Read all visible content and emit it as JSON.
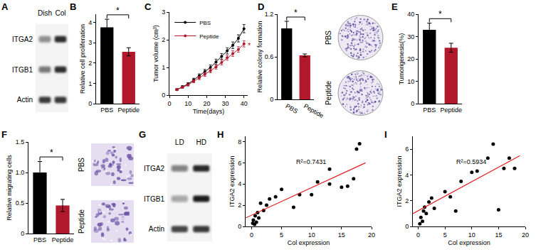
{
  "chart_data": [
    {
      "panel": "B",
      "type": "bar",
      "categories": [
        "PBS",
        "Peptide"
      ],
      "values": [
        3.75,
        2.55
      ],
      "errors": [
        0.4,
        0.2
      ],
      "colors": [
        "#000000",
        "#b2182b"
      ],
      "y_label": "Relative cell proliferation",
      "ylim": [
        0,
        4.4
      ],
      "yticks": [
        0,
        1,
        2,
        3,
        4
      ],
      "grid": false,
      "annotation": "*"
    },
    {
      "panel": "C",
      "type": "line",
      "x_label": "Time(days)",
      "y_label": "Tumor volume (cm³)",
      "x": [
        4,
        7,
        10,
        13,
        16,
        19,
        22,
        25,
        28,
        31,
        34,
        37,
        40
      ],
      "series": [
        {
          "name": "PBS",
          "color": "#000000",
          "values": [
            0.2,
            0.3,
            0.4,
            0.55,
            0.7,
            0.85,
            1.0,
            1.2,
            1.4,
            1.6,
            1.8,
            2.05,
            2.4
          ],
          "errors": [
            0.03,
            0.04,
            0.05,
            0.06,
            0.07,
            0.08,
            0.09,
            0.1,
            0.1,
            0.11,
            0.12,
            0.13,
            0.15
          ]
        },
        {
          "name": "Peptide",
          "color": "#b2182b",
          "values": [
            0.2,
            0.28,
            0.37,
            0.5,
            0.62,
            0.75,
            0.88,
            1.02,
            1.18,
            1.35,
            1.5,
            1.65,
            1.85
          ],
          "errors": [
            0.03,
            0.03,
            0.04,
            0.05,
            0.06,
            0.07,
            0.07,
            0.08,
            0.09,
            0.09,
            0.1,
            0.1,
            0.11
          ]
        }
      ],
      "xlim": [
        0,
        42
      ],
      "xticks": [
        0,
        10,
        20,
        30,
        40
      ],
      "ylim": [
        0,
        3
      ],
      "yticks": [
        0,
        1,
        2,
        3
      ],
      "legend": "top-left",
      "marker": "circle",
      "grid": false,
      "annotation": "*"
    },
    {
      "panel": "D",
      "type": "bar",
      "categories": [
        "PBS",
        "Peptide"
      ],
      "values": [
        1.0,
        0.62
      ],
      "errors": [
        0.1,
        0.02
      ],
      "colors": [
        "#000000",
        "#b2182b"
      ],
      "y_label": "Relative colony formation",
      "ylim": [
        0,
        1.2
      ],
      "yticks": [
        0,
        0.6,
        1.2
      ],
      "grid": false,
      "annotation": "*"
    },
    {
      "panel": "E",
      "type": "bar",
      "categories": [
        "PBS",
        "Peptide"
      ],
      "values": [
        33,
        25
      ],
      "errors": [
        3,
        2
      ],
      "colors": [
        "#000000",
        "#b2182b"
      ],
      "y_label": "Tumorigenesis(%)",
      "ylim": [
        0,
        40
      ],
      "yticks": [
        0,
        10,
        20,
        30,
        40
      ],
      "grid": false,
      "annotation": "*"
    },
    {
      "panel": "F",
      "type": "bar",
      "categories": [
        "PBS",
        "Peptide"
      ],
      "values": [
        1.0,
        0.46
      ],
      "errors": [
        0.18,
        0.1
      ],
      "colors": [
        "#000000",
        "#b2182b"
      ],
      "y_label": "Relative migrating cells",
      "ylim": [
        0,
        1.5
      ],
      "yticks": [
        0,
        0.5,
        {
          "value": 1,
          "label": "1.0"
        },
        1.5
      ],
      "grid": false,
      "annotation": "*"
    },
    {
      "panel": "H",
      "type": "scatter",
      "x_label": "Col expression",
      "y_label": "ITGA2 expression",
      "x": [
        0.2,
        0.3,
        0.5,
        0.6,
        0.8,
        1,
        1.2,
        1.5,
        2,
        2.5,
        3,
        4,
        5,
        7,
        8,
        10,
        11,
        13,
        13,
        15,
        16,
        17,
        17.5,
        18
      ],
      "values": [
        0.3,
        0.6,
        0.2,
        1.0,
        0.4,
        1.3,
        0.8,
        2.2,
        1.5,
        2.0,
        2.6,
        2.8,
        3.5,
        1.8,
        3.0,
        3.0,
        4.2,
        4.0,
        5.4,
        3.7,
        3.8,
        4.5,
        7.3,
        7.8
      ],
      "color": "#000000",
      "marker": "circle",
      "trendline": {
        "x": [
          -1,
          19
        ],
        "values": [
          0.8,
          6.0
        ],
        "color": "#e41a1c"
      },
      "xlim": [
        -1,
        20
      ],
      "xticks": [
        0,
        5,
        10,
        15,
        20
      ],
      "ylim": [
        0,
        8.5
      ],
      "yticks": [
        0,
        2,
        4,
        6,
        8
      ],
      "grid": false,
      "annotation": "R²=0.7431"
    },
    {
      "panel": "I",
      "type": "scatter",
      "x_label": "Col expression",
      "y_label": "ITGA2 expression",
      "x": [
        0.3,
        0.5,
        0.8,
        1,
        1.2,
        1.5,
        2,
        2.5,
        3,
        5,
        6,
        7,
        8,
        10,
        11,
        13,
        14,
        15,
        16,
        17,
        18
      ],
      "values": [
        0.2,
        0.7,
        0.4,
        1.2,
        1.5,
        1.0,
        1.9,
        2.2,
        1.4,
        2.7,
        2.3,
        1.2,
        3.5,
        4.2,
        4.3,
        5.3,
        6.4,
        1.3,
        4.5,
        5.3,
        4.5
      ],
      "color": "#000000",
      "marker": "circle",
      "trendline": {
        "x": [
          -1,
          19
        ],
        "values": [
          1.0,
          5.5
        ],
        "color": "#e41a1c"
      },
      "xlim": [
        -1,
        20
      ],
      "xticks": [
        0,
        5,
        10,
        15,
        20
      ],
      "ylim": [
        0,
        7
      ],
      "yticks": [
        0,
        2,
        4,
        6
      ],
      "grid": false,
      "annotation": "R²=0.5934"
    }
  ],
  "blots": [
    {
      "panel": "A",
      "lanes": [
        "Dish",
        "Col"
      ],
      "rows": [
        {
          "label": "ITGA2",
          "bands": [
            0.45,
            0.9
          ]
        },
        {
          "label": "ITGB1",
          "bands": [
            0.55,
            0.9
          ]
        },
        {
          "label": "Actin",
          "bands": [
            0.85,
            0.85
          ]
        }
      ]
    },
    {
      "panel": "G",
      "lanes": [
        "LD",
        "HD"
      ],
      "rows": [
        {
          "label": "ITGA2",
          "bands": [
            0.5,
            0.95
          ]
        },
        {
          "label": "ITGB1",
          "bands": [
            0.35,
            1.0
          ]
        },
        {
          "label": "Actin",
          "bands": [
            0.8,
            0.85
          ]
        }
      ]
    }
  ],
  "images": [
    {
      "panel": "D",
      "kind": "colony",
      "labels": [
        "PBS",
        "Peptide"
      ]
    },
    {
      "panel": "F",
      "kind": "migration",
      "labels": [
        "PBS",
        "Peptide"
      ]
    }
  ]
}
